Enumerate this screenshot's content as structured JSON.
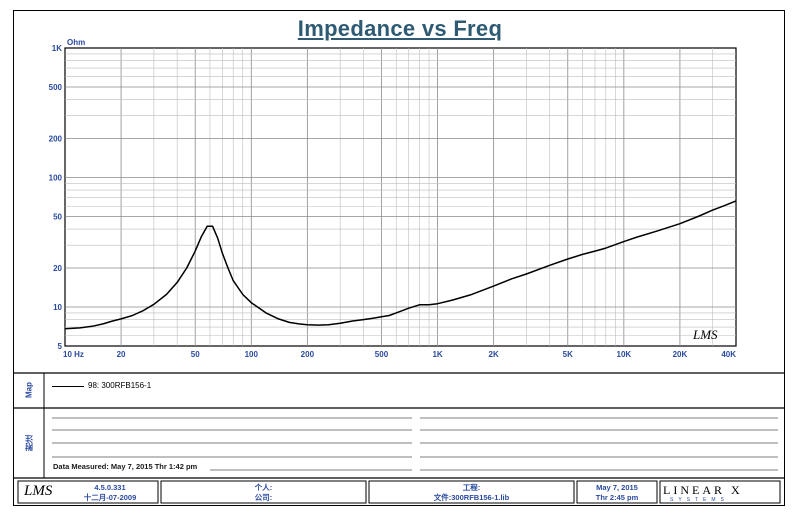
{
  "chart_data": {
    "type": "line",
    "title": "Impedance vs Freq",
    "ylabel_unit": "Ohm",
    "x_scale": "log",
    "y_scale": "log",
    "xlim": [
      10,
      40000
    ],
    "ylim": [
      5,
      1000
    ],
    "x_ticks": [
      {
        "v": 10,
        "label": "10  Hz"
      },
      {
        "v": 20,
        "label": "20"
      },
      {
        "v": 50,
        "label": "50"
      },
      {
        "v": 100,
        "label": "100"
      },
      {
        "v": 200,
        "label": "200"
      },
      {
        "v": 500,
        "label": "500"
      },
      {
        "v": 1000,
        "label": "1K"
      },
      {
        "v": 2000,
        "label": "2K"
      },
      {
        "v": 5000,
        "label": "5K"
      },
      {
        "v": 10000,
        "label": "10K"
      },
      {
        "v": 20000,
        "label": "20K"
      },
      {
        "v": 40000,
        "label": "40K"
      }
    ],
    "y_ticks": [
      {
        "v": 1000,
        "label": "1K"
      },
      {
        "v": 500,
        "label": "500"
      },
      {
        "v": 200,
        "label": "200"
      },
      {
        "v": 100,
        "label": "100"
      },
      {
        "v": 50,
        "label": "50"
      },
      {
        "v": 20,
        "label": "20"
      },
      {
        "v": 10,
        "label": "10"
      },
      {
        "v": 5,
        "label": "5"
      }
    ],
    "grid": true,
    "series": [
      {
        "name": "98: 300RFB156-1",
        "x": [
          10,
          12,
          14,
          16,
          18,
          20,
          23,
          26,
          30,
          35,
          40,
          45,
          50,
          54,
          58,
          62,
          66,
          70,
          75,
          80,
          90,
          100,
          120,
          140,
          160,
          180,
          200,
          230,
          260,
          300,
          350,
          400,
          450,
          500,
          550,
          600,
          700,
          800,
          900,
          1000,
          1200,
          1500,
          2000,
          2500,
          3000,
          4000,
          5000,
          6000,
          7000,
          8000,
          10000,
          12000,
          15000,
          20000,
          25000,
          30000,
          35000,
          40000
        ],
        "y": [
          6.8,
          6.9,
          7.1,
          7.4,
          7.8,
          8.1,
          8.6,
          9.3,
          10.5,
          12.5,
          15.5,
          20,
          27,
          35,
          42,
          42,
          34,
          26,
          20,
          16,
          12.5,
          10.8,
          9.0,
          8.1,
          7.6,
          7.4,
          7.3,
          7.25,
          7.3,
          7.5,
          7.8,
          8.0,
          8.2,
          8.4,
          8.6,
          9.0,
          9.8,
          10.4,
          10.4,
          10.6,
          11.3,
          12.4,
          14.5,
          16.5,
          18,
          21,
          23.5,
          25.5,
          27,
          28.5,
          32,
          35,
          38.5,
          44,
          50,
          56,
          61,
          66
        ]
      }
    ]
  },
  "legend": {
    "entry": "98: 300RFB156-1"
  },
  "side_labels": {
    "map": "Map",
    "notes": "附注"
  },
  "lms_mark": "LMS",
  "notes": {
    "measured": "Data Measured: May 7, 2015  Thr  1:42 pm"
  },
  "footer": {
    "version": "4.5.0.331",
    "version_date": "十二月-07-2009",
    "person_label": "个人:",
    "company_label": "公司:",
    "project_label": "工程:",
    "file_label": "文件:300RFB156-1.lib",
    "date": "May 7, 2015",
    "time": "Thr  2:45 pm",
    "brand": "LINEAR X",
    "brand_sub": "SYSTEMS"
  }
}
